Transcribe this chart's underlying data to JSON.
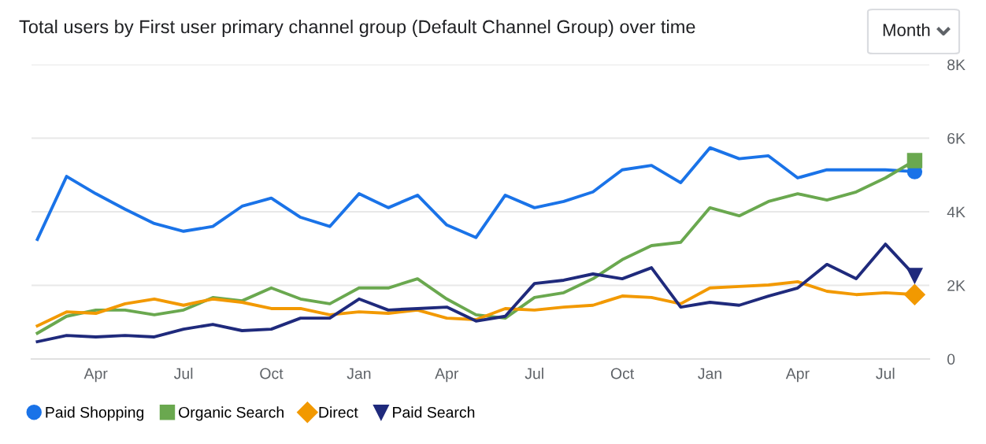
{
  "chart_data": {
    "type": "line",
    "title": "Total users by First user primary channel group (Default Channel Group) over time",
    "annotations": [
      "Month"
    ],
    "categories": [
      null,
      null,
      "Apr",
      null,
      null,
      "Jul",
      null,
      null,
      "Oct",
      null,
      null,
      "Jan",
      null,
      null,
      "Apr",
      null,
      null,
      "Jul",
      null,
      null,
      "Oct",
      null,
      null,
      "Jan",
      null,
      null,
      "Apr",
      null,
      null,
      "Jul",
      null
    ],
    "ylim": [
      0,
      8000
    ],
    "yticks": [
      0,
      {
        "value": 2000,
        "label": "2K"
      },
      {
        "value": 4000,
        "label": "4K"
      },
      {
        "value": 6000,
        "label": "6K"
      },
      {
        "value": 8000,
        "label": "8K"
      }
    ],
    "grid": "y",
    "legend": "bottom left",
    "series": [
      {
        "name": "Paid Shopping",
        "color": "#1a73e8",
        "values": [
          3250,
          4960,
          4490,
          4070,
          3680,
          3470,
          3600,
          4150,
          4370,
          3850,
          3600,
          4490,
          4110,
          4450,
          3640,
          3300,
          4450,
          4110,
          4280,
          4540,
          5140,
          5260,
          4790,
          5740,
          5440,
          5520,
          4920,
          5140,
          5140,
          5140,
          5090
        ]
      },
      {
        "name": "Organic Search",
        "color": "#6aa84f",
        "values": [
          700,
          1160,
          1330,
          1330,
          1200,
          1330,
          1670,
          1580,
          1930,
          1630,
          1500,
          1930,
          1930,
          2180,
          1630,
          1200,
          1110,
          1670,
          1800,
          2180,
          2700,
          3080,
          3170,
          4110,
          3890,
          4280,
          4490,
          4320,
          4540,
          4920,
          5390
        ]
      },
      {
        "name": "Direct",
        "color": "#f29900",
        "values": [
          900,
          1280,
          1240,
          1500,
          1630,
          1460,
          1630,
          1540,
          1370,
          1370,
          1200,
          1280,
          1240,
          1330,
          1110,
          1070,
          1370,
          1330,
          1410,
          1460,
          1710,
          1670,
          1500,
          1930,
          1970,
          2010,
          2100,
          1840,
          1750,
          1800,
          1750
        ]
      },
      {
        "name": "Paid Search",
        "color": "#1f2a7c",
        "values": [
          470,
          640,
          600,
          640,
          600,
          810,
          940,
          770,
          810,
          1110,
          1110,
          1630,
          1330,
          1370,
          1410,
          1030,
          1160,
          2050,
          2140,
          2310,
          2180,
          2480,
          1410,
          1540,
          1460,
          1710,
          1930,
          2570,
          2180,
          3120,
          2270
        ]
      }
    ]
  }
}
